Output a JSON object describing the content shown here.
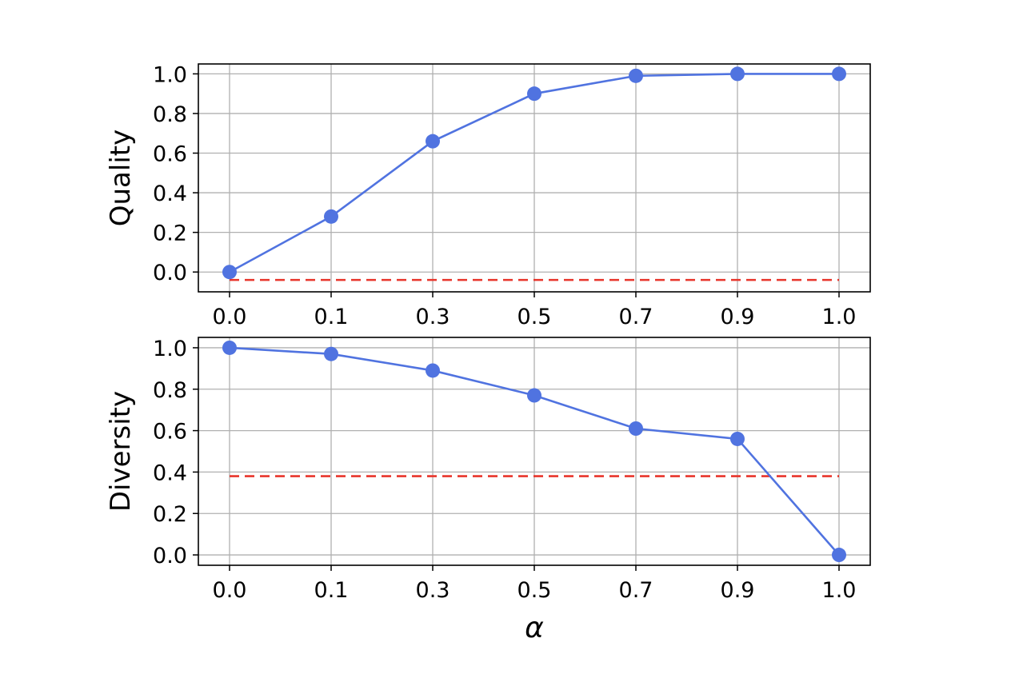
{
  "chart_data": [
    {
      "type": "line",
      "ylabel": "Quality",
      "xlabel": "",
      "x_tick_labels": [
        "0.0",
        "0.1",
        "0.3",
        "0.5",
        "0.7",
        "0.9",
        "1.0"
      ],
      "y_tick_labels": [
        "0.0",
        "0.2",
        "0.4",
        "0.6",
        "0.8",
        "1.0"
      ],
      "y_ticks": [
        0.0,
        0.2,
        0.4,
        0.6,
        0.8,
        1.0
      ],
      "ylim": [
        -0.1,
        1.05
      ],
      "grid": true,
      "series": [
        {
          "values": [
            0.0,
            0.28,
            0.66,
            0.9,
            0.99,
            1.0,
            1.0
          ],
          "color": "#5073e0",
          "marker": "circle"
        }
      ],
      "baseline": {
        "value": -0.04,
        "color": "#e8352b",
        "style": "dashed"
      }
    },
    {
      "type": "line",
      "ylabel": "Diversity",
      "xlabel": "α",
      "x_tick_labels": [
        "0.0",
        "0.1",
        "0.3",
        "0.5",
        "0.7",
        "0.9",
        "1.0"
      ],
      "y_tick_labels": [
        "0.0",
        "0.2",
        "0.4",
        "0.6",
        "0.8",
        "1.0"
      ],
      "y_ticks": [
        0.0,
        0.2,
        0.4,
        0.6,
        0.8,
        1.0
      ],
      "ylim": [
        -0.05,
        1.05
      ],
      "grid": true,
      "series": [
        {
          "values": [
            1.0,
            0.97,
            0.89,
            0.77,
            0.61,
            0.56,
            0.0
          ],
          "color": "#5073e0",
          "marker": "circle"
        }
      ],
      "baseline": {
        "value": 0.38,
        "color": "#e8352b",
        "style": "dashed"
      }
    }
  ]
}
